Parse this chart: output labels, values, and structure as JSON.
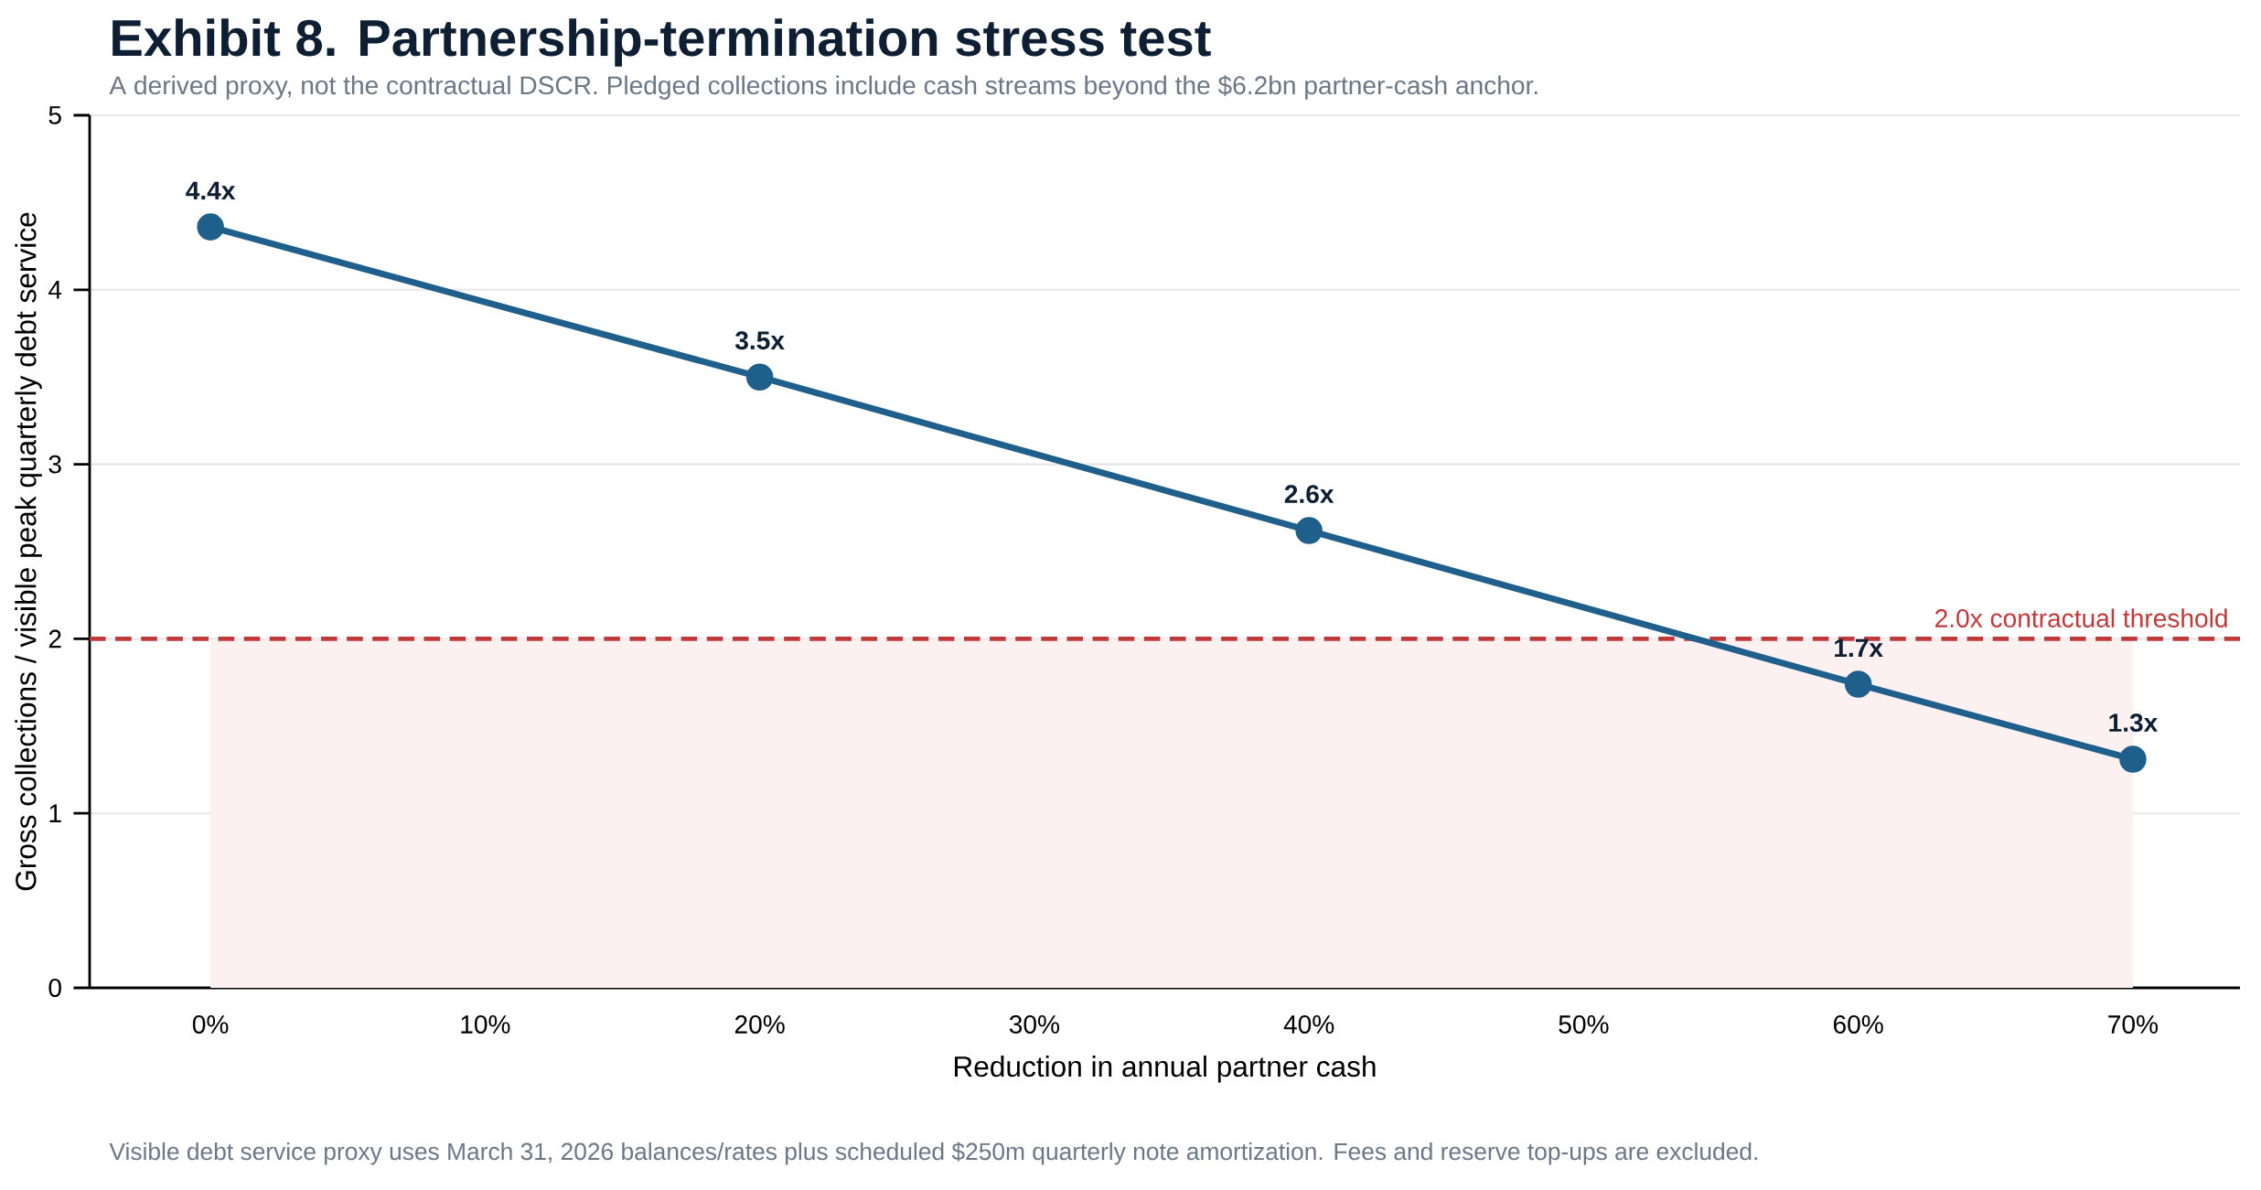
{
  "chart_data": {
    "type": "line",
    "title": "Exhibit 8. Partnership-termination stress test",
    "subtitle": "A derived proxy, not the contractual DSCR. Pledged collections include cash streams beyond the $6.2bn partner-cash anchor.",
    "xlabel": "Reduction in annual partner cash",
    "ylabel": "Gross collections / visible peak quarterly debt service",
    "x": [
      0,
      20,
      40,
      60,
      70
    ],
    "series": [
      {
        "color": "#1f5f8b",
        "values": [
          4.36,
          3.5,
          2.62,
          1.74,
          1.31
        ],
        "value_labels": [
          "4.4x",
          "3.5x",
          "2.6x",
          "1.7x",
          "1.3x"
        ]
      }
    ],
    "xlim": [
      -4.4,
      73.9
    ],
    "xticks": [
      {
        "value": 0,
        "label": "0%"
      },
      {
        "value": 10,
        "label": "10%"
      },
      {
        "value": 20,
        "label": "20%"
      },
      {
        "value": 30,
        "label": "30%"
      },
      {
        "value": 40,
        "label": "40%"
      },
      {
        "value": 50,
        "label": "50%"
      },
      {
        "value": 60,
        "label": "60%"
      },
      {
        "value": 70,
        "label": "70%"
      }
    ],
    "ylim": [
      0,
      5
    ],
    "yticks": [
      0,
      1,
      2,
      3,
      4,
      5
    ],
    "grid": "y",
    "marker": "circle",
    "line_style": "solid",
    "ref_lines": [
      {
        "axis": "y",
        "value": 2,
        "label": "2.0x contractual threshold",
        "color": "#c0393b",
        "line_style": "dashed"
      }
    ],
    "bands": [
      {
        "axis": "y",
        "from": 0,
        "to": 2,
        "color": "#fdf0f1"
      }
    ],
    "annotations": [
      "Visible debt service proxy uses March 31, 2026 balances/rates plus scheduled $250m quarterly note amortization. Fees and reserve top-ups are excluded."
    ]
  }
}
